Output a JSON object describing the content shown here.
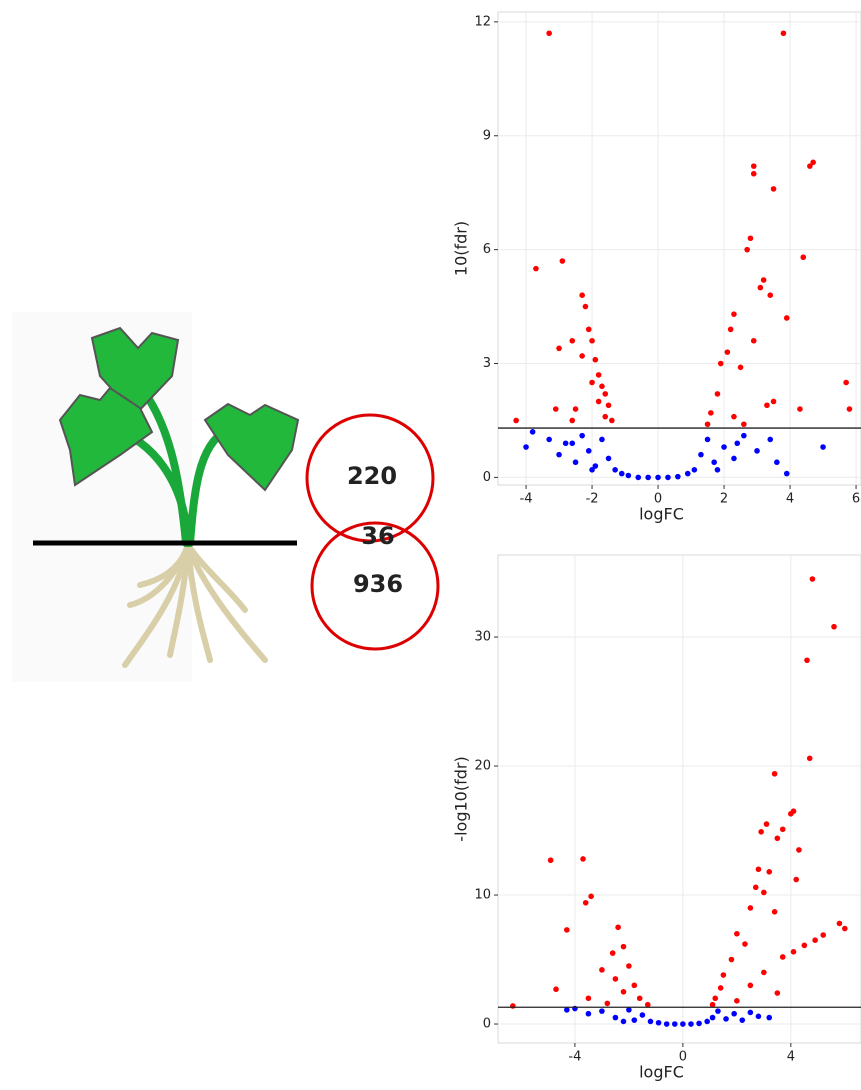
{
  "chart_data": [
    {
      "type": "venn",
      "values": [
        220,
        36,
        936
      ],
      "color": "#dd0000"
    },
    {
      "type": "scatter",
      "x_label": "logFC",
      "y_label": "10(fdr)",
      "xlim": [
        -4.85,
        6.15
      ],
      "ylim": [
        -0.2,
        12.26
      ],
      "xticks": [
        -4,
        -2,
        0,
        2,
        4,
        6
      ],
      "yticks": [
        0,
        3,
        6,
        9,
        12
      ],
      "grid": true,
      "hline": 1.3,
      "series": [
        {
          "color": "#ff0000",
          "x": [
            -3.3,
            3.8,
            2.9,
            2.9,
            4.7,
            4.6,
            3.5,
            2.8,
            2.7,
            4.4,
            -3.7,
            -2.9,
            3.2,
            3.1,
            -2.3,
            3.4,
            -2.2,
            3.9,
            2.3,
            -2.1,
            -2.0,
            2.2,
            -3.0,
            -2.6,
            2.9,
            2.1,
            -1.9,
            -2.3,
            1.9,
            -1.8,
            2.5,
            -1.7,
            -2.0,
            -1.6,
            5.7,
            -1.8,
            1.8,
            -1.5,
            3.5,
            3.3,
            -2.5,
            -3.1,
            5.8,
            4.3,
            1.6,
            -1.6,
            2.3,
            -4.3,
            -1.4,
            1.5,
            -2.6,
            2.6
          ],
          "values": [
            11.7,
            11.7,
            8.2,
            8.0,
            8.3,
            8.2,
            7.6,
            6.3,
            6.0,
            5.8,
            5.5,
            5.7,
            5.2,
            5.0,
            4.8,
            4.8,
            4.5,
            4.2,
            4.3,
            3.9,
            3.6,
            3.9,
            3.4,
            3.6,
            3.6,
            3.3,
            3.1,
            3.2,
            3.0,
            2.7,
            2.9,
            2.4,
            2.5,
            2.2,
            2.5,
            2.0,
            2.2,
            1.9,
            2.0,
            1.9,
            1.8,
            1.8,
            1.8,
            1.8,
            1.7,
            1.6,
            1.6,
            1.5,
            1.5,
            1.4,
            1.5,
            1.4
          ]
        },
        {
          "color": "#0000ff",
          "x": [
            -4.0,
            -3.8,
            -3.3,
            -3.0,
            -2.8,
            -2.5,
            -2.3,
            -2.1,
            -1.9,
            -1.7,
            -1.5,
            -1.3,
            -1.1,
            -0.9,
            -0.6,
            -0.3,
            0,
            0.3,
            0.6,
            0.9,
            1.1,
            1.3,
            1.5,
            1.7,
            2.0,
            2.3,
            2.6,
            3.0,
            3.4,
            3.6,
            3.9,
            5.0,
            -2.0,
            1.8,
            -2.6,
            2.4
          ],
          "values": [
            0.8,
            1.2,
            1.0,
            0.6,
            0.9,
            0.4,
            1.1,
            0.7,
            0.3,
            1.0,
            0.5,
            0.2,
            0.1,
            0.05,
            0,
            0,
            0,
            0,
            0.02,
            0.1,
            0.2,
            0.6,
            1.0,
            0.4,
            0.8,
            0.5,
            1.1,
            0.7,
            1.0,
            0.4,
            0.1,
            0.8,
            0.2,
            0.2,
            0.9,
            0.9
          ]
        }
      ]
    },
    {
      "type": "scatter",
      "x_label": "logFC",
      "y_label": "-log10(fdr)",
      "xlim": [
        -6.85,
        6.6
      ],
      "ylim": [
        -1.47,
        36.36
      ],
      "xticks": [
        -4,
        0,
        4
      ],
      "yticks": [
        0,
        10,
        20,
        30
      ],
      "grid": true,
      "hline": 1.3,
      "series": [
        {
          "color": "#ff0000",
          "x": [
            4.8,
            5.6,
            4.6,
            4.7,
            3.4,
            4.1,
            4.0,
            3.7,
            2.9,
            3.1,
            3.5,
            4.3,
            -4.9,
            -3.7,
            2.8,
            3.2,
            4.2,
            2.7,
            3.0,
            -3.4,
            -3.6,
            2.5,
            3.4,
            -2.4,
            -4.3,
            5.8,
            6.0,
            5.2,
            4.9,
            4.5,
            4.1,
            3.7,
            -2.2,
            -2.6,
            2.0,
            2.3,
            -2.0,
            1.8,
            -3.0,
            -2.5,
            1.5,
            3.0,
            -1.8,
            1.4,
            -2.2,
            2.5,
            -4.7,
            -1.6,
            1.2,
            -6.3,
            -3.5,
            3.5,
            -1.3,
            1.1,
            2.0,
            -2.8
          ],
          "values": [
            34.5,
            30.8,
            28.2,
            20.6,
            19.4,
            16.5,
            16.3,
            15.1,
            14.9,
            15.5,
            14.4,
            13.5,
            12.7,
            12.8,
            12.0,
            11.8,
            11.2,
            10.6,
            10.2,
            9.9,
            9.4,
            9.0,
            8.7,
            7.5,
            7.3,
            7.8,
            7.4,
            6.9,
            6.5,
            6.1,
            5.6,
            5.2,
            6.0,
            5.5,
            7.0,
            6.2,
            4.5,
            5.0,
            4.2,
            3.5,
            3.8,
            4.0,
            3.0,
            2.8,
            2.5,
            3.0,
            2.7,
            2.0,
            2.0,
            1.4,
            2.0,
            2.4,
            1.5,
            1.5,
            1.8,
            1.6
          ]
        },
        {
          "color": "#0000ff",
          "x": [
            -4.0,
            -3.5,
            -3.0,
            -2.5,
            -2.0,
            -1.8,
            -1.5,
            -1.2,
            -0.9,
            -0.6,
            -0.3,
            0,
            0.3,
            0.6,
            0.9,
            1.1,
            1.3,
            1.6,
            1.9,
            2.2,
            2.5,
            2.8,
            3.2,
            -4.3,
            -2.2
          ],
          "values": [
            1.2,
            0.8,
            1.0,
            0.5,
            1.1,
            0.3,
            0.7,
            0.2,
            0.1,
            0,
            0,
            0,
            0,
            0.05,
            0.2,
            0.5,
            1.0,
            0.4,
            0.8,
            0.3,
            0.9,
            0.6,
            0.5,
            1.1,
            0.2
          ]
        }
      ]
    }
  ]
}
